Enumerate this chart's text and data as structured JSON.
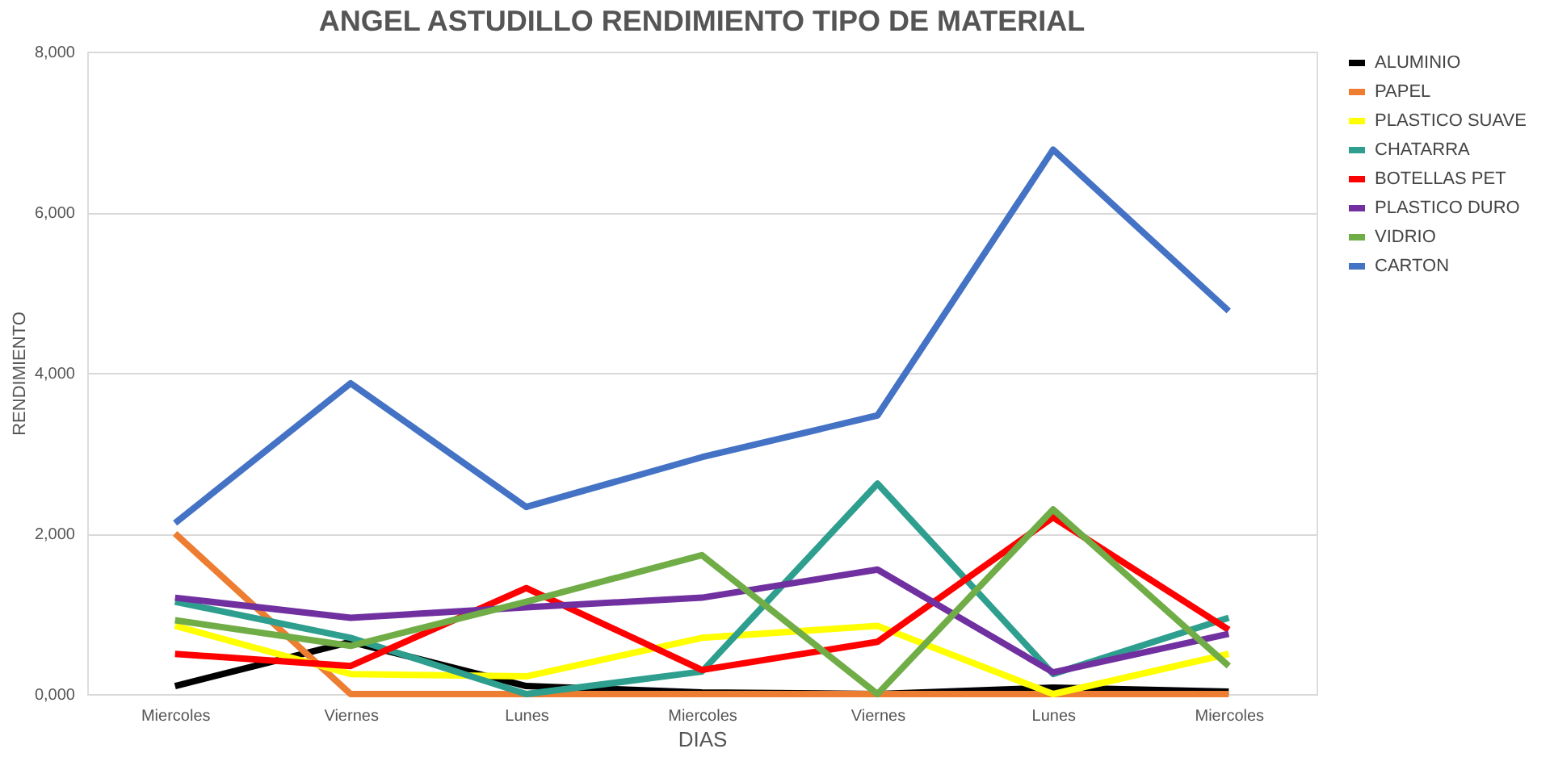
{
  "chart_data": {
    "type": "line",
    "title": "ANGEL ASTUDILLO RENDIMIENTO TIPO DE MATERIAL",
    "xlabel": "DIAS",
    "ylabel": "RENDIMIENTO",
    "categories": [
      "Miercoles",
      "Viernes",
      "Lunes",
      "Miercoles",
      "Viernes",
      "Lunes",
      "Miercoles"
    ],
    "ylim": [
      0,
      8000
    ],
    "yticks": [
      {
        "value": 0,
        "label": "0,000"
      },
      {
        "value": 2000,
        "label": "2,000"
      },
      {
        "value": 4000,
        "label": "4,000"
      },
      {
        "value": 6000,
        "label": "6,000"
      },
      {
        "value": 8000,
        "label": "8,000"
      }
    ],
    "grid": "y",
    "legend": "right",
    "marker": "none",
    "line_style": "solid",
    "series": [
      {
        "name": "ALUMINIO",
        "color": "#000000",
        "values": [
          100,
          650,
          100,
          20,
          0,
          80,
          30
        ]
      },
      {
        "name": "PAPEL",
        "color": "#ed7d31",
        "values": [
          2000,
          0,
          0,
          0,
          0,
          0,
          0
        ]
      },
      {
        "name": "PLASTICO SUAVE",
        "color": "#ffff00",
        "values": [
          850,
          250,
          220,
          700,
          850,
          0,
          500
        ]
      },
      {
        "name": "CHATARRA",
        "color": "#2e9e8e",
        "values": [
          1150,
          700,
          0,
          280,
          2620,
          250,
          950
        ]
      },
      {
        "name": "BOTELLAS PET",
        "color": "#ff0000",
        "values": [
          500,
          350,
          1320,
          300,
          650,
          2200,
          800
        ]
      },
      {
        "name": "PLASTICO DURO",
        "color": "#7030a0",
        "values": [
          1200,
          950,
          1080,
          1200,
          1550,
          270,
          750
        ]
      },
      {
        "name": "VIDRIO",
        "color": "#70ad47",
        "values": [
          920,
          600,
          1150,
          1730,
          0,
          2300,
          350
        ]
      },
      {
        "name": "CARTON",
        "color": "#4472c4",
        "values": [
          2130,
          3870,
          2330,
          2950,
          3470,
          6780,
          4770
        ]
      }
    ]
  }
}
